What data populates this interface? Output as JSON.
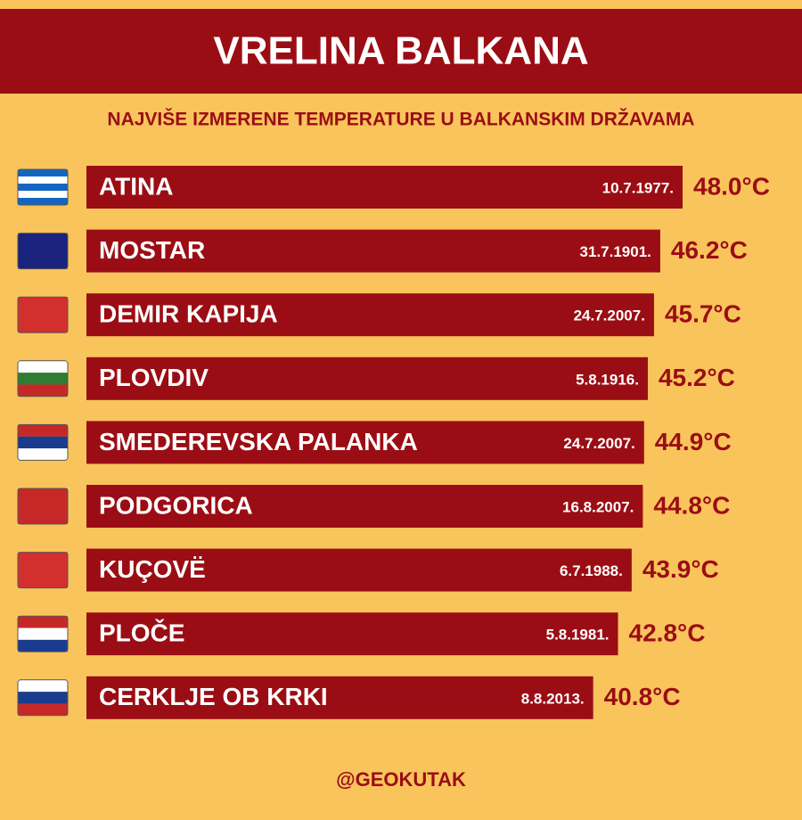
{
  "chart_data": {
    "type": "bar",
    "orientation": "horizontal",
    "title": "VRELINA BALKANA",
    "subtitle": "NAJVIŠE IZMERENE TEMPERATURE U BALKANSKIM DRŽAVAMA",
    "categories": [
      "ATINA",
      "MOSTAR",
      "DEMIR KAPIJA",
      "PLOVDIV",
      "SMEDEREVSKA PALANKA",
      "PODGORICA",
      "KUÇOVË",
      "PLOČE",
      "CERKLJE OB KRKI"
    ],
    "dates": [
      "10.7.1977.",
      "31.7.1901.",
      "24.7.2007.",
      "5.8.1916.",
      "24.7.2007.",
      "16.8.2007.",
      "6.7.1988.",
      "5.8.1981.",
      "8.8.2013."
    ],
    "values": [
      48.0,
      46.2,
      45.7,
      45.2,
      44.9,
      44.8,
      43.9,
      42.8,
      40.8
    ],
    "value_labels": [
      "48.0°C",
      "46.2°C",
      "45.7°C",
      "45.2°C",
      "44.9°C",
      "44.8°C",
      "43.9°C",
      "42.8°C",
      "40.8°C"
    ],
    "color": "#9b0d14",
    "footer": "@GEOKUTAK"
  }
}
